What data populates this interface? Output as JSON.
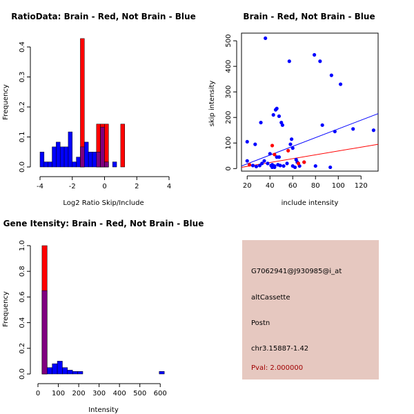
{
  "colors": {
    "brain": "#ff0000",
    "not_brain": "#0000ff",
    "overlap": "#7f007f",
    "info_bg": "#e6c8c0",
    "pval_text": "#a00000"
  },
  "chart_data": [
    {
      "type": "bar",
      "title": "RatioData: Brain - Red, Not Brain - Blue",
      "xlabel": "Log2 Ratio Skip/Include",
      "ylabel": "Frequency",
      "xlim": [
        -4,
        4
      ],
      "ylim": [
        0,
        0.43
      ],
      "xticks": [
        "-4",
        "-2",
        "0",
        "2",
        "4"
      ],
      "xtick_values": [
        -4,
        -2,
        0,
        2,
        4
      ],
      "yticks": [
        "0.0",
        "0.1",
        "0.2",
        "0.3",
        "0.4"
      ],
      "ytick_values": [
        0,
        0.1,
        0.2,
        0.3,
        0.4
      ],
      "bin_edges": [
        -4.0,
        -3.75,
        -3.5,
        -3.25,
        -3.0,
        -2.75,
        -2.5,
        -2.25,
        -2.0,
        -1.75,
        -1.5,
        -1.25,
        -1.0,
        -0.75,
        -0.5,
        -0.25,
        0.0,
        0.25,
        0.5,
        0.75,
        1.0,
        1.25,
        1.5,
        1.75,
        2.0,
        2.25,
        2.5,
        2.75,
        3.0,
        3.25,
        3.5,
        3.75,
        4.0
      ],
      "series": [
        {
          "name": "Brain",
          "values": [
            0,
            0,
            0,
            0,
            0,
            0,
            0,
            0,
            0,
            0,
            0.428,
            0,
            0,
            0,
            0.143,
            0.143,
            0.143,
            0,
            0,
            0,
            0.143,
            0,
            0,
            0,
            0,
            0,
            0,
            0,
            0,
            0,
            0,
            0
          ]
        },
        {
          "name": "Not Brain",
          "values": [
            0.05,
            0.017,
            0.017,
            0.067,
            0.083,
            0.067,
            0.067,
            0.117,
            0.017,
            0.033,
            0.067,
            0.083,
            0.05,
            0.05,
            0.05,
            0.133,
            0.017,
            0,
            0.017,
            0,
            0,
            0,
            0,
            0,
            0,
            0,
            0,
            0,
            0,
            0,
            0,
            0
          ]
        }
      ]
    },
    {
      "type": "scatter",
      "title": "Brain - Red, Not Brain - Blue",
      "xlabel": "include intensity",
      "ylabel": "skip intensity",
      "xlim": [
        15,
        135
      ],
      "ylim": [
        -10,
        530
      ],
      "xticks": [
        "20",
        "40",
        "60",
        "80",
        "100",
        "120"
      ],
      "xtick_values": [
        20,
        40,
        60,
        80,
        100,
        120
      ],
      "yticks": [
        "0",
        "100",
        "200",
        "300",
        "400",
        "500"
      ],
      "ytick_values": [
        0,
        100,
        200,
        300,
        400,
        500
      ],
      "series": [
        {
          "name": "Not Brain",
          "points": [
            [
              20,
              105
            ],
            [
              20,
              30
            ],
            [
              25,
              12
            ],
            [
              27,
              95
            ],
            [
              28,
              8
            ],
            [
              31,
              12
            ],
            [
              32,
              180
            ],
            [
              33,
              20
            ],
            [
              35,
              30
            ],
            [
              36,
              510
            ],
            [
              38,
              20
            ],
            [
              40,
              58
            ],
            [
              41,
              12
            ],
            [
              42,
              15
            ],
            [
              42,
              5
            ],
            [
              43,
              210
            ],
            [
              44,
              10
            ],
            [
              44,
              5
            ],
            [
              45,
              230
            ],
            [
              46,
              45
            ],
            [
              46,
              235
            ],
            [
              47,
              15
            ],
            [
              48,
              45
            ],
            [
              48,
              205
            ],
            [
              49,
              12
            ],
            [
              50,
              180
            ],
            [
              51,
              170
            ],
            [
              52,
              10
            ],
            [
              55,
              20
            ],
            [
              57,
              420
            ],
            [
              58,
              95
            ],
            [
              59,
              115
            ],
            [
              60,
              80
            ],
            [
              60,
              10
            ],
            [
              62,
              5
            ],
            [
              63,
              35
            ],
            [
              64,
              25
            ],
            [
              66,
              10
            ],
            [
              70,
              25
            ],
            [
              79,
              445
            ],
            [
              80,
              10
            ],
            [
              84,
              420
            ],
            [
              86,
              170
            ],
            [
              93,
              5
            ],
            [
              94,
              365
            ],
            [
              97,
              145
            ],
            [
              102,
              330
            ],
            [
              113,
              155
            ],
            [
              131,
              150
            ]
          ]
        },
        {
          "name": "Brain",
          "points": [
            [
              22,
              15
            ],
            [
              42,
              90
            ],
            [
              44,
              55
            ],
            [
              56,
              70
            ],
            [
              65,
              20
            ],
            [
              70,
              25
            ]
          ]
        }
      ],
      "fit_lines": [
        {
          "name": "Not Brain",
          "y_at_xmin": 10,
          "y_at_xmax": 215
        },
        {
          "name": "Brain",
          "y_at_xmin": 5,
          "y_at_xmax": 95
        }
      ]
    },
    {
      "type": "bar",
      "title": "Gene Itensity: Brain - Red, Not Brain - Blue",
      "xlabel": "Intensity",
      "ylabel": "Frequency",
      "xlim": [
        0,
        650
      ],
      "ylim": [
        0,
        1.0
      ],
      "xticks": [
        "0",
        "100",
        "200",
        "300",
        "400",
        "500",
        "600"
      ],
      "xtick_values": [
        0,
        100,
        200,
        300,
        400,
        500,
        600
      ],
      "yticks": [
        "0.0",
        "0.2",
        "0.4",
        "0.6",
        "0.8",
        "1.0"
      ],
      "ytick_values": [
        0,
        0.2,
        0.4,
        0.6,
        0.8,
        1.0
      ],
      "bin_edges": [
        20,
        45,
        70,
        95,
        120,
        145,
        170,
        195,
        220,
        245,
        270,
        295,
        320,
        345,
        370,
        395,
        420,
        445,
        470,
        495,
        520,
        545,
        570,
        595,
        620,
        645
      ],
      "series": [
        {
          "name": "Brain",
          "values": [
            1.0,
            0,
            0,
            0,
            0,
            0,
            0,
            0,
            0,
            0,
            0,
            0,
            0,
            0,
            0,
            0,
            0,
            0,
            0,
            0,
            0,
            0,
            0,
            0,
            0
          ]
        },
        {
          "name": "Not Brain",
          "values": [
            0.65,
            0.05,
            0.08,
            0.1,
            0.05,
            0.03,
            0.02,
            0.02,
            0,
            0,
            0,
            0,
            0,
            0,
            0,
            0,
            0,
            0,
            0,
            0,
            0,
            0,
            0,
            0.02,
            0
          ]
        }
      ]
    }
  ],
  "info": {
    "probe_id": "G7062941@J930985@i_at",
    "event_type": "altCassette",
    "gene": "Postn",
    "location": "chr3.15887-1.42",
    "pval": "Pval: 2.000000"
  }
}
